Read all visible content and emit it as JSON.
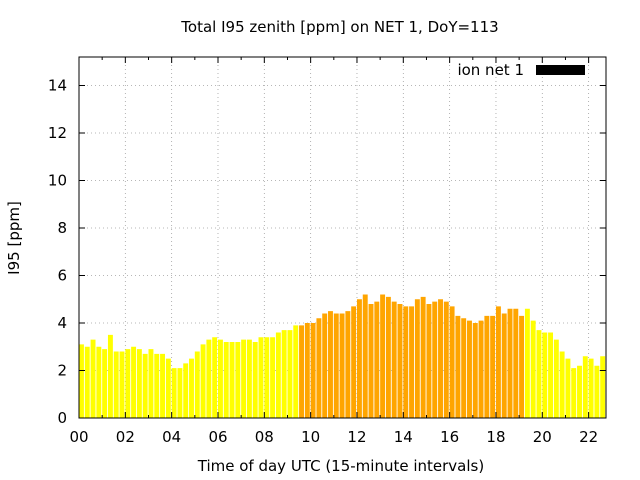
{
  "chart_data": {
    "type": "bar",
    "title": "Total I95 zenith [ppm] on NET 1, DoY=113",
    "xlabel": "Time of day UTC (15-minute intervals)",
    "ylabel": "I95 [ppm]",
    "xlim": [
      0,
      22.75
    ],
    "ylim": [
      0,
      15.2
    ],
    "x_ticks": [
      "00",
      "02",
      "04",
      "06",
      "08",
      "10",
      "12",
      "14",
      "16",
      "18",
      "20",
      "22"
    ],
    "y_ticks": [
      "0",
      "2",
      "4",
      "6",
      "8",
      "10",
      "12",
      "14"
    ],
    "grid": true,
    "legend": {
      "label": "ion net 1",
      "position": "top-right"
    },
    "series": [
      {
        "name": "ion net 1",
        "interval_hours": 0.25,
        "colors": {
          "night": "#ffff00",
          "day": "#ffa500"
        },
        "day_range_hours": [
          9.5,
          19.25
        ],
        "values": [
          3.1,
          3.0,
          3.3,
          3.0,
          2.9,
          3.5,
          2.8,
          2.8,
          2.9,
          3.0,
          2.9,
          2.7,
          2.9,
          2.7,
          2.7,
          2.5,
          2.1,
          2.1,
          2.3,
          2.5,
          2.8,
          3.1,
          3.3,
          3.4,
          3.3,
          3.2,
          3.2,
          3.2,
          3.3,
          3.3,
          3.2,
          3.4,
          3.4,
          3.4,
          3.6,
          3.7,
          3.7,
          3.9,
          3.9,
          4.0,
          4.0,
          4.2,
          4.4,
          4.5,
          4.4,
          4.4,
          4.5,
          4.7,
          5.0,
          5.2,
          4.8,
          4.9,
          5.2,
          5.1,
          4.9,
          4.8,
          4.7,
          4.7,
          5.0,
          5.1,
          4.8,
          4.9,
          5.0,
          4.9,
          4.7,
          4.3,
          4.2,
          4.1,
          4.0,
          4.1,
          4.3,
          4.3,
          4.7,
          4.4,
          4.6,
          4.6,
          4.3,
          4.6,
          4.1,
          3.7,
          3.6,
          3.6,
          3.3,
          2.8,
          2.5,
          2.1,
          2.2,
          2.6,
          2.5,
          2.2,
          2.6,
          2.6,
          2.5
        ]
      }
    ]
  }
}
